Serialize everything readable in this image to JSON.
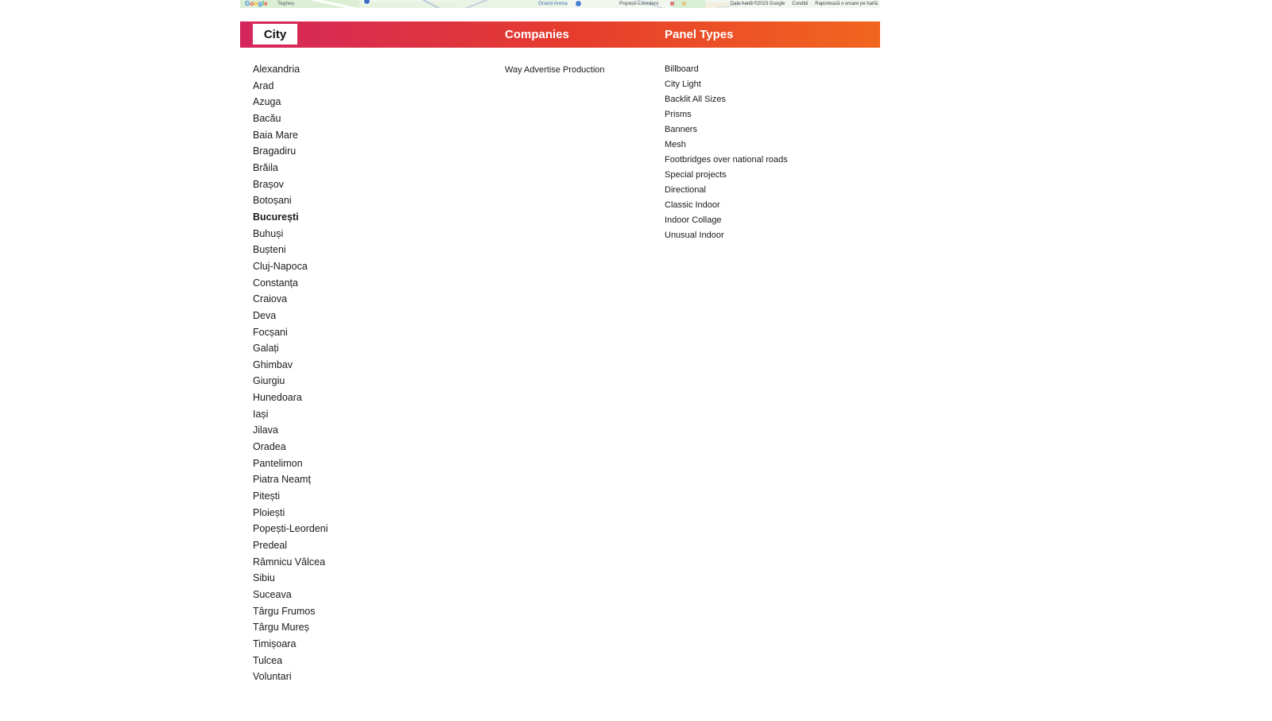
{
  "map_strip": {
    "google_logo": "Google",
    "labels": {
      "area_left": "Tegheș",
      "poi": "Grand Arena",
      "area_right": "Popești-Leordeni"
    },
    "attribution": {
      "copyright": "Date hartă ©2023 Google",
      "terms": "Condiții",
      "report": "Raportează o eroare pe hartă"
    }
  },
  "header": {
    "city_label": "City",
    "companies_label": "Companies",
    "panel_types_label": "Panel Types",
    "colors": {
      "gradient_start": "#d4265c",
      "gradient_mid": "#e63c2d",
      "gradient_end": "#f1661f",
      "city_box_bg": "#ffffff",
      "city_box_text": "#111111"
    }
  },
  "directory": {
    "cities": {
      "highlighted": "București",
      "items": [
        "Alexandria",
        "Arad",
        "Azuga",
        "Bacău",
        "Baia Mare",
        "Bragadiru",
        "Brăila",
        "Brașov",
        "Botoșani",
        "București",
        "Buhuși",
        "Bușteni",
        "Cluj-Napoca",
        "Constanța",
        "Craiova",
        "Deva",
        "Focșani",
        "Galați",
        "Ghimbav",
        "Giurgiu",
        "Hunedoara",
        "Iași",
        "Jilava",
        "Oradea",
        "Pantelimon",
        "Piatra Neamț",
        "Pitești",
        "Ploiești",
        "Popești-Leordeni",
        "Predeal",
        "Râmnicu Vâlcea",
        "Sibiu",
        "Suceava",
        "Târgu Frumos",
        "Târgu Mureș",
        "Timișoara",
        "Tulcea",
        "Voluntari"
      ]
    },
    "companies": {
      "items": [
        "Way Advertise Production"
      ]
    },
    "panel_types": {
      "items": [
        "Billboard",
        "City Light",
        "Backlit All Sizes",
        "Prisms",
        "Banners",
        "Mesh",
        "Footbridges over national roads",
        "Special projects",
        "Directional",
        "Classic Indoor",
        "Indoor Collage",
        "Unusual Indoor"
      ]
    }
  }
}
